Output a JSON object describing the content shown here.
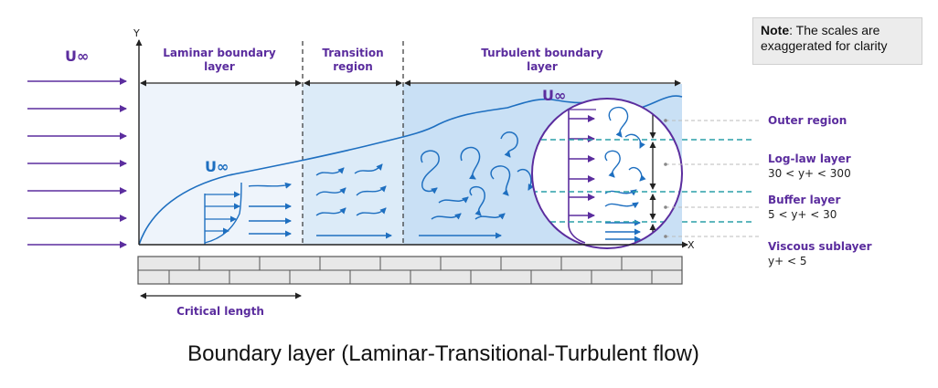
{
  "note": {
    "label": "Note",
    "text": ": The scales are exaggerated for clarity"
  },
  "caption": "Boundary layer (Laminar-Transitional-Turbulent flow)",
  "axes": {
    "y": "Y",
    "x": "X"
  },
  "free_stream_symbol": "U∞",
  "zones": {
    "laminar": [
      "Laminar boundary",
      "layer"
    ],
    "transition": [
      "Transition",
      "region"
    ],
    "turbulent": [
      "Turbulent boundary",
      "layer"
    ]
  },
  "critical_length": "Critical length",
  "layers": {
    "outer": {
      "name": "Outer region",
      "range": ""
    },
    "loglaw": {
      "name": "Log-law layer",
      "range": "30 < y+ < 300"
    },
    "buffer": {
      "name": "Buffer layer",
      "range": "5 < y+ < 30"
    },
    "viscous": {
      "name": "Viscous sublayer",
      "range": "y+ < 5"
    }
  },
  "colors": {
    "purple": "#5b2d9e",
    "blue": "#1e6fc0",
    "teal": "#2a9fa8",
    "laminar_bg": "#eef4fb",
    "transition_bg": "#dcebf8",
    "turbulent_bg": "#c9e0f5"
  }
}
